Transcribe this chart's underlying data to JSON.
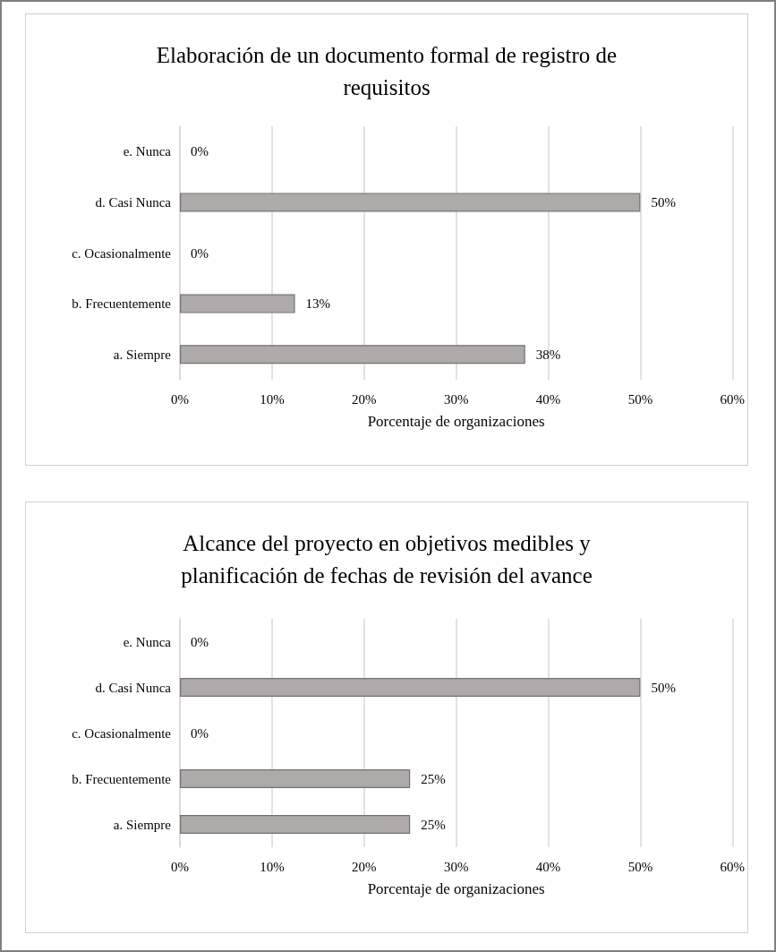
{
  "chart_data": [
    {
      "type": "bar",
      "orientation": "horizontal",
      "title": "Elaboración de un documento formal de registro de requisitos",
      "xlabel": "Porcentaje de organizaciones",
      "categories": [
        "e. Nunca",
        "d. Casi Nunca",
        "c. Ocasionalmente",
        "b. Frecuentemente",
        "a. Siempre"
      ],
      "values": [
        0,
        50,
        0,
        12.5,
        37.5
      ],
      "value_labels": [
        "0%",
        "50%",
        "0%",
        "13%",
        "38%"
      ],
      "color": "#aeaaaa",
      "xlim": [
        0,
        60
      ],
      "xticks": [
        {
          "value": 0,
          "label": "0%"
        },
        {
          "value": 10,
          "label": "10%"
        },
        {
          "value": 20,
          "label": "20%"
        },
        {
          "value": 30,
          "label": "30%"
        },
        {
          "value": 40,
          "label": "40%"
        },
        {
          "value": 50,
          "label": "50%"
        },
        {
          "value": 60,
          "label": "60%"
        }
      ],
      "grid": "x"
    },
    {
      "type": "bar",
      "orientation": "horizontal",
      "title": "Alcance del proyecto en objetivos medibles y planificación de fechas de revisión del avance",
      "xlabel": "Porcentaje de organizaciones",
      "categories": [
        "e. Nunca",
        "d. Casi Nunca",
        "c. Ocasionalmente",
        "b. Frecuentemente",
        "a. Siempre"
      ],
      "values": [
        0,
        50,
        0,
        25,
        25
      ],
      "value_labels": [
        "0%",
        "50%",
        "0%",
        "25%",
        "25%"
      ],
      "color": "#aeaaaa",
      "xlim": [
        0,
        60
      ],
      "xticks": [
        {
          "value": 0,
          "label": "0%"
        },
        {
          "value": 10,
          "label": "10%"
        },
        {
          "value": 20,
          "label": "20%"
        },
        {
          "value": 30,
          "label": "30%"
        },
        {
          "value": 40,
          "label": "40%"
        },
        {
          "value": 50,
          "label": "50%"
        },
        {
          "value": 60,
          "label": "60%"
        }
      ],
      "grid": "x"
    }
  ]
}
